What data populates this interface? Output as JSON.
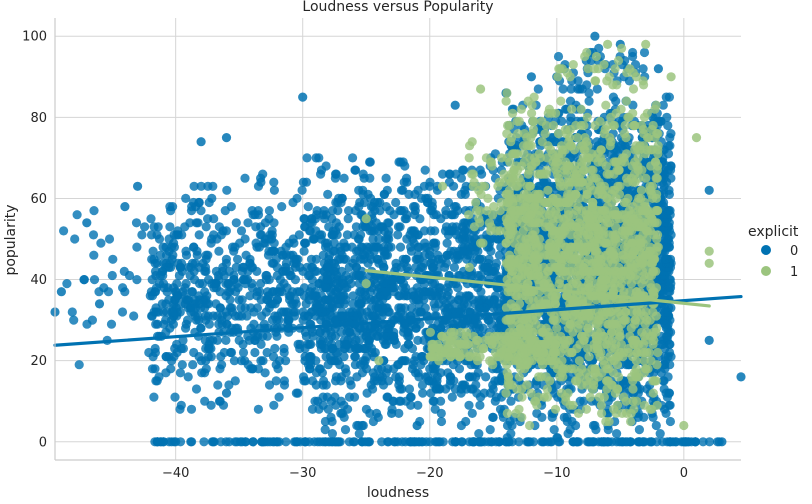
{
  "chart_data": {
    "type": "scatter",
    "title": "Loudness versus Popularity",
    "xlabel": "loudness",
    "ylabel": "popularity",
    "xlim": [
      -49.5,
      4.5
    ],
    "ylim": [
      -4.5,
      104.5
    ],
    "xticks": [
      -40,
      -30,
      -20,
      -10,
      0
    ],
    "yticks": [
      0,
      20,
      40,
      60,
      80,
      100
    ],
    "xtick_labels": [
      "−40",
      "−30",
      "−20",
      "−10",
      "0"
    ],
    "ytick_labels": [
      "0",
      "20",
      "40",
      "60",
      "80",
      "100"
    ],
    "grid": true,
    "legend": {
      "title": "explicit",
      "position": "right",
      "entries": [
        {
          "label": "0",
          "color": "#0072B2"
        },
        {
          "label": "1",
          "color": "#9BC47E"
        }
      ]
    },
    "series": [
      {
        "name": "0",
        "color": "#0072B2",
        "regression": {
          "x": [
            -49.5,
            4.5
          ],
          "y": [
            23.8,
            35.8
          ]
        },
        "clusters": [
          {
            "xmin": -14,
            "xmax": -1,
            "ymin": 0,
            "ymax": 88,
            "n": 2600
          },
          {
            "xmin": -30,
            "xmax": -14,
            "ymin": 0,
            "ymax": 72,
            "n": 1400
          },
          {
            "xmin": -42,
            "xmax": -30,
            "ymin": 5,
            "ymax": 68,
            "n": 550
          },
          {
            "xmin": -49,
            "xmax": -40,
            "ymin": 15,
            "ymax": 62,
            "n": 45
          },
          {
            "xmin": -42,
            "xmax": 3,
            "ymin": 0,
            "ymax": 0,
            "n": 220
          },
          {
            "xmin": -10,
            "xmax": -3,
            "ymin": 85,
            "ymax": 99,
            "n": 40
          }
        ],
        "points": [
          [
            -47,
            54
          ],
          [
            -49,
            37
          ],
          [
            -49.5,
            32
          ],
          [
            -46,
            34
          ],
          [
            -44,
            58
          ],
          [
            -43,
            63
          ],
          [
            -36,
            12
          ],
          [
            -30,
            85
          ],
          [
            -27,
            7
          ],
          [
            -23,
            7
          ],
          [
            -21,
            4
          ],
          [
            4.5,
            16
          ],
          [
            3,
            0
          ],
          [
            2,
            25
          ],
          [
            2,
            62
          ],
          [
            -7,
            100
          ],
          [
            -5,
            98
          ],
          [
            -2,
            92
          ],
          [
            -10,
            90
          ],
          [
            -12,
            90
          ],
          [
            -14,
            86
          ],
          [
            -18,
            83
          ],
          [
            -38,
            74
          ],
          [
            -36,
            75
          ]
        ]
      },
      {
        "name": "1",
        "color": "#9BC47E",
        "regression": {
          "x": [
            -25,
            2
          ],
          "y": [
            42.2,
            33.5
          ]
        },
        "clusters": [
          {
            "xmin": -14,
            "xmax": -2,
            "ymin": 2,
            "ymax": 88,
            "n": 1500
          },
          {
            "xmin": -20,
            "xmax": -10,
            "ymin": 18,
            "ymax": 28,
            "n": 180
          },
          {
            "xmin": -17,
            "xmax": -12,
            "ymin": 40,
            "ymax": 80,
            "n": 60
          },
          {
            "xmin": -10,
            "xmax": -3,
            "ymin": 85,
            "ymax": 98,
            "n": 30
          }
        ],
        "points": [
          [
            -25,
            55
          ],
          [
            -25,
            39
          ],
          [
            -16,
            87
          ],
          [
            -6,
            98
          ],
          [
            -3,
            98
          ],
          [
            -1,
            90
          ],
          [
            1,
            75
          ],
          [
            2,
            47
          ],
          [
            2,
            44
          ],
          [
            0,
            4
          ],
          [
            -24,
            20
          ],
          [
            -19,
            63
          ]
        ]
      }
    ]
  }
}
